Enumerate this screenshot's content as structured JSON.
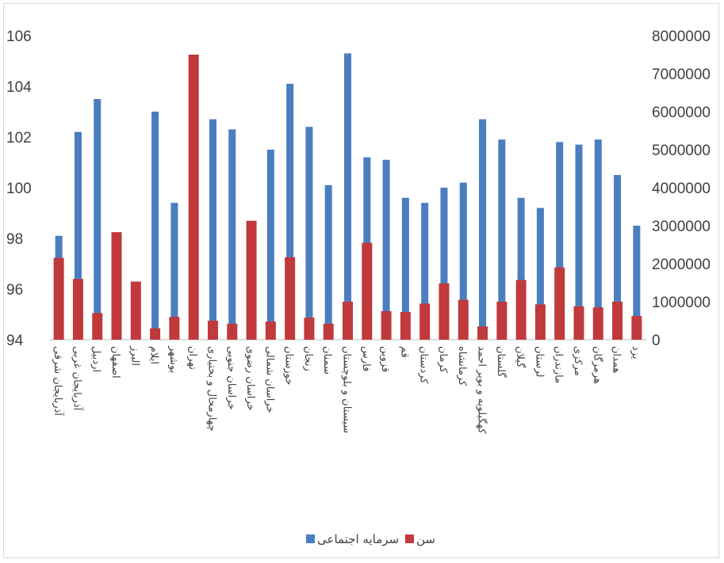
{
  "chart_data": {
    "type": "bar",
    "title": "",
    "xlabel": "",
    "ylabel": "",
    "y_left": {
      "min": 94,
      "max": 106,
      "step": 2,
      "ticks": [
        "94",
        "96",
        "98",
        "100",
        "102",
        "104",
        "106"
      ]
    },
    "y_right": {
      "min": 0,
      "max": 8000000,
      "step": 1000000,
      "ticks": [
        "0",
        "1000000",
        "2000000",
        "3000000",
        "4000000",
        "5000000",
        "6000000",
        "7000000",
        "8000000"
      ]
    },
    "categories": [
      "آذربایجان شرقی",
      "آذربایجان غربی",
      "اردبیل",
      "اصفهان",
      "البرز",
      "ایلام",
      "بوشهر",
      "تهران",
      "چهارمحال و بختیاری",
      "خراسان جنوبی",
      "خراسان رضوی",
      "خراسان شمالی",
      "خوزستان",
      "زنجان",
      "سمنان",
      "سیستان و بلوچستان",
      "فارس",
      "قزوین",
      "قم",
      "کردستان",
      "کرمان",
      "کرمانشاه",
      "کهگیلویه و بویر احمد",
      "گلستان",
      "گیلان",
      "لرستان",
      "مازندران",
      "مرکزی",
      "هرمزگان",
      "همدان",
      "یزد"
    ],
    "series": [
      {
        "name": "سرمایه اجتماعی",
        "color": "#4a7ebf",
        "axis": "left",
        "values": [
          98.1,
          102.2,
          103.5,
          94.8,
          94.3,
          103.0,
          99.4,
          94.6,
          102.7,
          102.3,
          94.5,
          101.5,
          104.1,
          102.4,
          100.1,
          105.3,
          101.2,
          101.1,
          99.6,
          99.4,
          100.0,
          100.2,
          102.7,
          101.9,
          99.6,
          99.2,
          101.8,
          101.7,
          101.9,
          100.5,
          98.5
        ]
      },
      {
        "name": "سن",
        "color": "#c0393b",
        "axis": "right",
        "values": [
          2150000,
          1600000,
          700000,
          2830000,
          1530000,
          300000,
          600000,
          7500000,
          500000,
          420000,
          3130000,
          480000,
          2170000,
          580000,
          420000,
          1000000,
          2550000,
          750000,
          730000,
          950000,
          1480000,
          1050000,
          350000,
          1000000,
          1570000,
          930000,
          1900000,
          880000,
          850000,
          1000000,
          620000
        ]
      }
    ],
    "legend": {
      "position": "bottom"
    }
  }
}
